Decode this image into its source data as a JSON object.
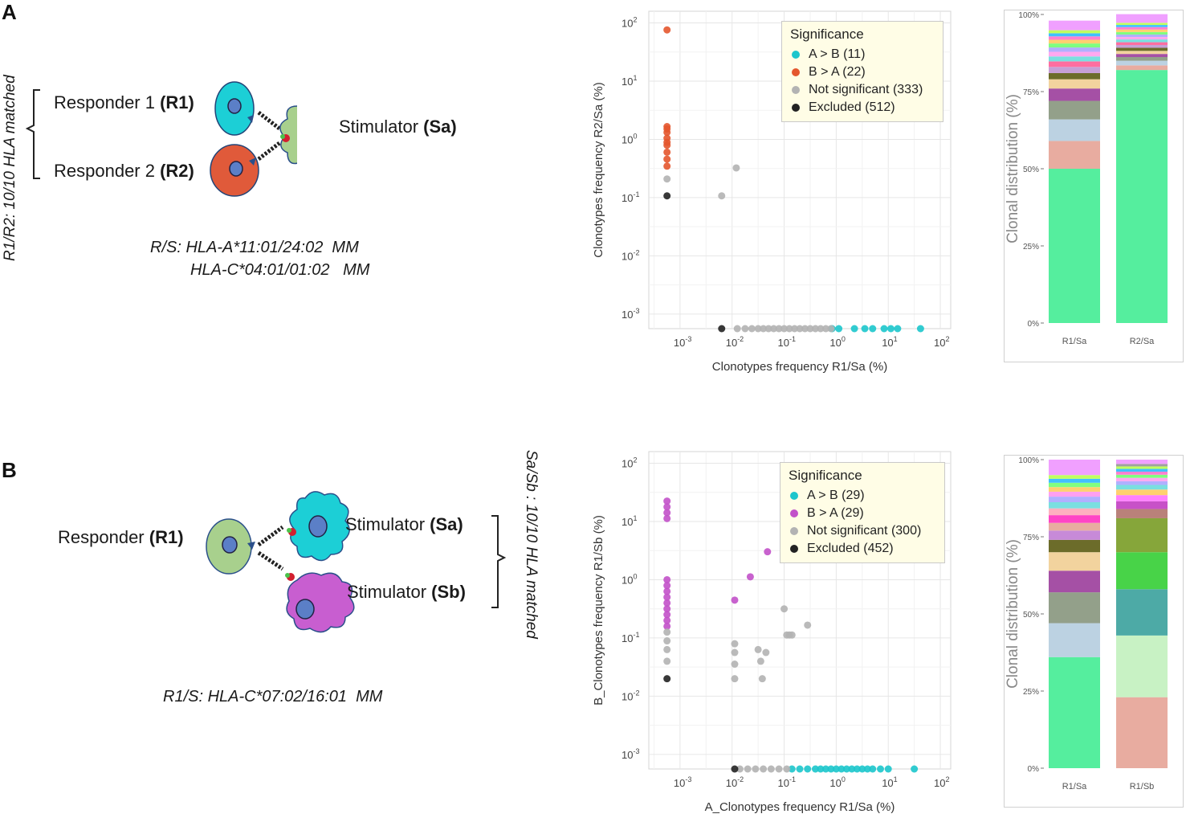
{
  "panels": {
    "A": {
      "letter": "A",
      "diagram": {
        "vertical_label": "R1/R2: 10/10 HLA matched",
        "responder1_prefix": "Responder 1 ",
        "responder1_code": "(R1)",
        "responder2_prefix": "Responder 2 ",
        "responder2_code": "(R2)",
        "stimulator_prefix": "Stimulator ",
        "stimulator_code": "(Sa)",
        "mismatch_line1": "R/S: HLA-A*11:01/24:02  MM",
        "mismatch_line2": "HLA-C*04:01/01:02   MM",
        "colors": {
          "responder1": "#1ccfd6",
          "responder2": "#e05a3a",
          "stimulator": "#a8d08d",
          "nucleus": "#5b7fc7"
        }
      },
      "legend": {
        "title": "Significance",
        "entries": [
          {
            "label": "A > B (11)",
            "color": "#1cc6cc"
          },
          {
            "label": "B > A (22)",
            "color": "#e4572e"
          },
          {
            "label": "Not significant (333)",
            "color": "#b3b3b3"
          },
          {
            "label": "Excluded (512)",
            "color": "#222222"
          }
        ]
      },
      "bar_colors": [
        "#55ee9e",
        "#e8aca0",
        "#bcd2e2",
        "#93a08a",
        "#a550a5",
        "#f2d39e",
        "#6c6c2a",
        "#c6a0d6",
        "#ff6ea0",
        "#7adfe0",
        "#ffa8f0",
        "#b0b0ff",
        "#80ff80",
        "#ffd070",
        "#ff80d0",
        "#40c0ff",
        "#c0ff60",
        "#f0a0ff"
      ]
    },
    "B": {
      "letter": "B",
      "diagram": {
        "vertical_label": "Sa/Sb : 10/10 HLA matched",
        "responder_prefix": "Responder ",
        "responder_code": "(R1)",
        "stimulator_a_prefix": "Stimulator ",
        "stimulator_a_code": "(Sa)",
        "stimulator_b_prefix": "Stimulator ",
        "stimulator_b_code": "(Sb)",
        "mismatch_line1": "R1/S: HLA-C*07:02/16:01  MM",
        "colors": {
          "responder": "#a8d08d",
          "stimulator_a": "#1ccfd6",
          "stimulator_b": "#c85ed0",
          "nucleus": "#5b7fc7"
        }
      },
      "legend": {
        "title": "Significance",
        "entries": [
          {
            "label": "A > B (29)",
            "color": "#1cc6cc"
          },
          {
            "label": "B > A (29)",
            "color": "#c251c9"
          },
          {
            "label": "Not significant (300)",
            "color": "#b3b3b3"
          },
          {
            "label": "Excluded (452)",
            "color": "#222222"
          }
        ]
      }
    }
  },
  "chart_data": [
    {
      "id": "A-scatter",
      "type": "scatter",
      "xlabel": "Clonotypes frequency R1/Sa (%)",
      "ylabel": "Clonotypes frequency R2/Sa (%)",
      "scale": "log10",
      "xlim": [
        -3.6,
        2.2
      ],
      "ylim": [
        -3.25,
        2.2
      ],
      "x_ticks": [
        -3,
        -2,
        -1,
        0,
        1,
        2
      ],
      "y_ticks": [
        -3,
        -2,
        -1,
        0,
        1,
        2
      ],
      "tick_base": "10",
      "series": [
        {
          "name": "A > B (11)",
          "color": "#1cc6cc",
          "points": [
            [
              -0.08,
              -3.25
            ],
            [
              0.05,
              -3.25
            ],
            [
              0.35,
              -3.25
            ],
            [
              0.55,
              -3.25
            ],
            [
              0.7,
              -3.25
            ],
            [
              0.92,
              -3.25
            ],
            [
              1.05,
              -3.25
            ],
            [
              1.18,
              -3.25
            ],
            [
              1.62,
              -3.25
            ]
          ]
        },
        {
          "name": "B > A (22)",
          "color": "#e4572e",
          "points": [
            [
              -3.25,
              1.88
            ],
            [
              -3.25,
              0.22
            ],
            [
              -3.25,
              0.12
            ],
            [
              -3.25,
              0.02
            ],
            [
              -3.25,
              -0.1
            ],
            [
              -3.25,
              -0.22
            ],
            [
              -3.25,
              -0.34
            ],
            [
              -3.25,
              -0.46
            ],
            [
              -3.25,
              0.18
            ],
            [
              -3.25,
              -0.05
            ]
          ]
        },
        {
          "name": "Not significant (333)",
          "color": "#b3b3b3",
          "points": [
            [
              -3.25,
              -0.68
            ],
            [
              -2.2,
              -0.97
            ],
            [
              -1.92,
              -0.49
            ],
            [
              -1.9,
              -3.25
            ],
            [
              -1.75,
              -3.25
            ],
            [
              -1.62,
              -3.25
            ],
            [
              -1.5,
              -3.25
            ],
            [
              -1.4,
              -3.25
            ],
            [
              -1.3,
              -3.25
            ],
            [
              -1.2,
              -3.25
            ],
            [
              -1.1,
              -3.25
            ],
            [
              -1.0,
              -3.25
            ],
            [
              -0.9,
              -3.25
            ],
            [
              -0.8,
              -3.25
            ],
            [
              -0.7,
              -3.25
            ],
            [
              -0.6,
              -3.25
            ],
            [
              -0.5,
              -3.25
            ],
            [
              -0.4,
              -3.25
            ],
            [
              -0.3,
              -3.25
            ],
            [
              -0.2,
              -3.25
            ],
            [
              -0.1,
              -3.25
            ]
          ]
        },
        {
          "name": "Excluded (512)",
          "color": "#222222",
          "points": [
            [
              -3.25,
              -0.97
            ],
            [
              -2.2,
              -3.25
            ]
          ]
        }
      ]
    },
    {
      "id": "A-bars",
      "type": "bar",
      "stacked": true,
      "ylabel": "Clonal distribution (%)",
      "categories": [
        "R1/Sa",
        "R2/Sa"
      ],
      "y_ticks": [
        "0%",
        "25%",
        "50%",
        "75%",
        "100%"
      ],
      "ylim": [
        0,
        100
      ],
      "stacks": [
        [
          50,
          9,
          7,
          6,
          4,
          3,
          2,
          2,
          1.8,
          1.6,
          1.5,
          1.4,
          1.3,
          1.2,
          1.1,
          1.0,
          1.0,
          3.1
        ],
        [
          82,
          1.5,
          1.5,
          1.2,
          1.0,
          1.0,
          1.0,
          0.9,
          0.9,
          0.9,
          0.8,
          0.8,
          0.8,
          0.8,
          0.8,
          0.7,
          0.7,
          2.8
        ]
      ]
    },
    {
      "id": "B-scatter",
      "type": "scatter",
      "xlabel": "A_Clonotypes frequency R1/Sa (%)",
      "ylabel": "B_Clonotypes frequency R1/Sb (%)",
      "scale": "log10",
      "xlim": [
        -3.6,
        2.2
      ],
      "ylim": [
        -3.25,
        2.2
      ],
      "x_ticks": [
        -3,
        -2,
        -1,
        0,
        1,
        2
      ],
      "y_ticks": [
        -3,
        -2,
        -1,
        0,
        1,
        2
      ],
      "tick_base": "10",
      "series": [
        {
          "name": "A > B (29)",
          "color": "#1cc6cc",
          "points": [
            [
              -0.85,
              -3.25
            ],
            [
              -0.7,
              -3.25
            ],
            [
              -0.55,
              -3.25
            ],
            [
              -0.4,
              -3.25
            ],
            [
              -0.3,
              -3.25
            ],
            [
              -0.2,
              -3.25
            ],
            [
              -0.1,
              -3.25
            ],
            [
              0.0,
              -3.25
            ],
            [
              0.1,
              -3.25
            ],
            [
              0.2,
              -3.25
            ],
            [
              0.3,
              -3.25
            ],
            [
              0.4,
              -3.25
            ],
            [
              0.5,
              -3.25
            ],
            [
              0.6,
              -3.25
            ],
            [
              0.7,
              -3.25
            ],
            [
              0.85,
              -3.25
            ],
            [
              1.0,
              -3.25
            ],
            [
              1.5,
              -3.25
            ]
          ]
        },
        {
          "name": "B > A (29)",
          "color": "#c251c9",
          "points": [
            [
              -3.25,
              1.35
            ],
            [
              -3.25,
              1.25
            ],
            [
              -3.25,
              1.15
            ],
            [
              -3.25,
              1.05
            ],
            [
              -3.25,
              0.0
            ],
            [
              -3.25,
              -0.1
            ],
            [
              -3.25,
              -0.2
            ],
            [
              -3.25,
              -0.3
            ],
            [
              -3.25,
              -0.4
            ],
            [
              -3.25,
              -0.5
            ],
            [
              -3.25,
              -0.6
            ],
            [
              -3.25,
              -0.7
            ],
            [
              -3.25,
              -0.8
            ],
            [
              -1.95,
              -0.35
            ],
            [
              -1.65,
              0.05
            ],
            [
              -1.32,
              0.48
            ]
          ]
        },
        {
          "name": "Not significant (300)",
          "color": "#b3b3b3",
          "points": [
            [
              -3.25,
              -0.9
            ],
            [
              -3.25,
              -1.05
            ],
            [
              -3.25,
              -1.2
            ],
            [
              -3.25,
              -1.4
            ],
            [
              -1.95,
              -1.1
            ],
            [
              -1.95,
              -1.25
            ],
            [
              -1.95,
              -1.45
            ],
            [
              -1.95,
              -1.7
            ],
            [
              -1.5,
              -1.2
            ],
            [
              -1.45,
              -1.4
            ],
            [
              -1.42,
              -1.7
            ],
            [
              -1.35,
              -1.25
            ],
            [
              -1.0,
              -0.5
            ],
            [
              -0.95,
              -0.95
            ],
            [
              -0.9,
              -0.95
            ],
            [
              -0.85,
              -0.95
            ],
            [
              -0.55,
              -0.78
            ],
            [
              -1.85,
              -3.25
            ],
            [
              -1.7,
              -3.25
            ],
            [
              -1.55,
              -3.25
            ],
            [
              -1.4,
              -3.25
            ],
            [
              -1.25,
              -3.25
            ],
            [
              -1.1,
              -3.25
            ],
            [
              -0.95,
              -3.25
            ]
          ]
        },
        {
          "name": "Excluded (452)",
          "color": "#222222",
          "points": [
            [
              -3.25,
              -1.7
            ],
            [
              -1.95,
              -3.25
            ]
          ]
        }
      ]
    },
    {
      "id": "B-bars",
      "type": "bar",
      "stacked": true,
      "ylabel": "Clonal distribution (%)",
      "categories": [
        "R1/Sa",
        "R1/Sb"
      ],
      "y_ticks": [
        "0%",
        "25%",
        "50%",
        "75%",
        "100%"
      ],
      "ylim": [
        0,
        100
      ],
      "stacks": [
        [
          36,
          11,
          10,
          7,
          6,
          4,
          3,
          2.5,
          2.5,
          2.2,
          2,
          1.8,
          1.6,
          1.5,
          1.4,
          1.3,
          1.2,
          5
        ],
        [
          23,
          20,
          15,
          12,
          11,
          3,
          2.5,
          2,
          1.8,
          1.5,
          1.2,
          1.1,
          1.0,
          1.0,
          0.9,
          0.8,
          0.8,
          1.4
        ]
      ],
      "stack_colors": [
        [
          "#55ee9e",
          "#bcd2e2",
          "#93a08a",
          "#a550a5",
          "#f2d39e",
          "#6c6c2a",
          "#c78ad8",
          "#e8aca0",
          "#ff44c6",
          "#ffb0c0",
          "#7adfe0",
          "#b0b0ff",
          "#ffa0f0",
          "#ffd070",
          "#80ff80",
          "#40c0ff",
          "#c0ff60",
          "#f0a0ff"
        ],
        [
          "#e8aca0",
          "#c8f2c4",
          "#4daaa6",
          "#48d348",
          "#86a63a",
          "#b9817a",
          "#c851c8",
          "#ff80ff",
          "#ffd070",
          "#7adfe0",
          "#b0b0ff",
          "#ffa8f0",
          "#80ff80",
          "#ff80d0",
          "#40c0ff",
          "#c0ff60",
          "#a0a0a0",
          "#f0a0ff"
        ]
      ]
    }
  ]
}
